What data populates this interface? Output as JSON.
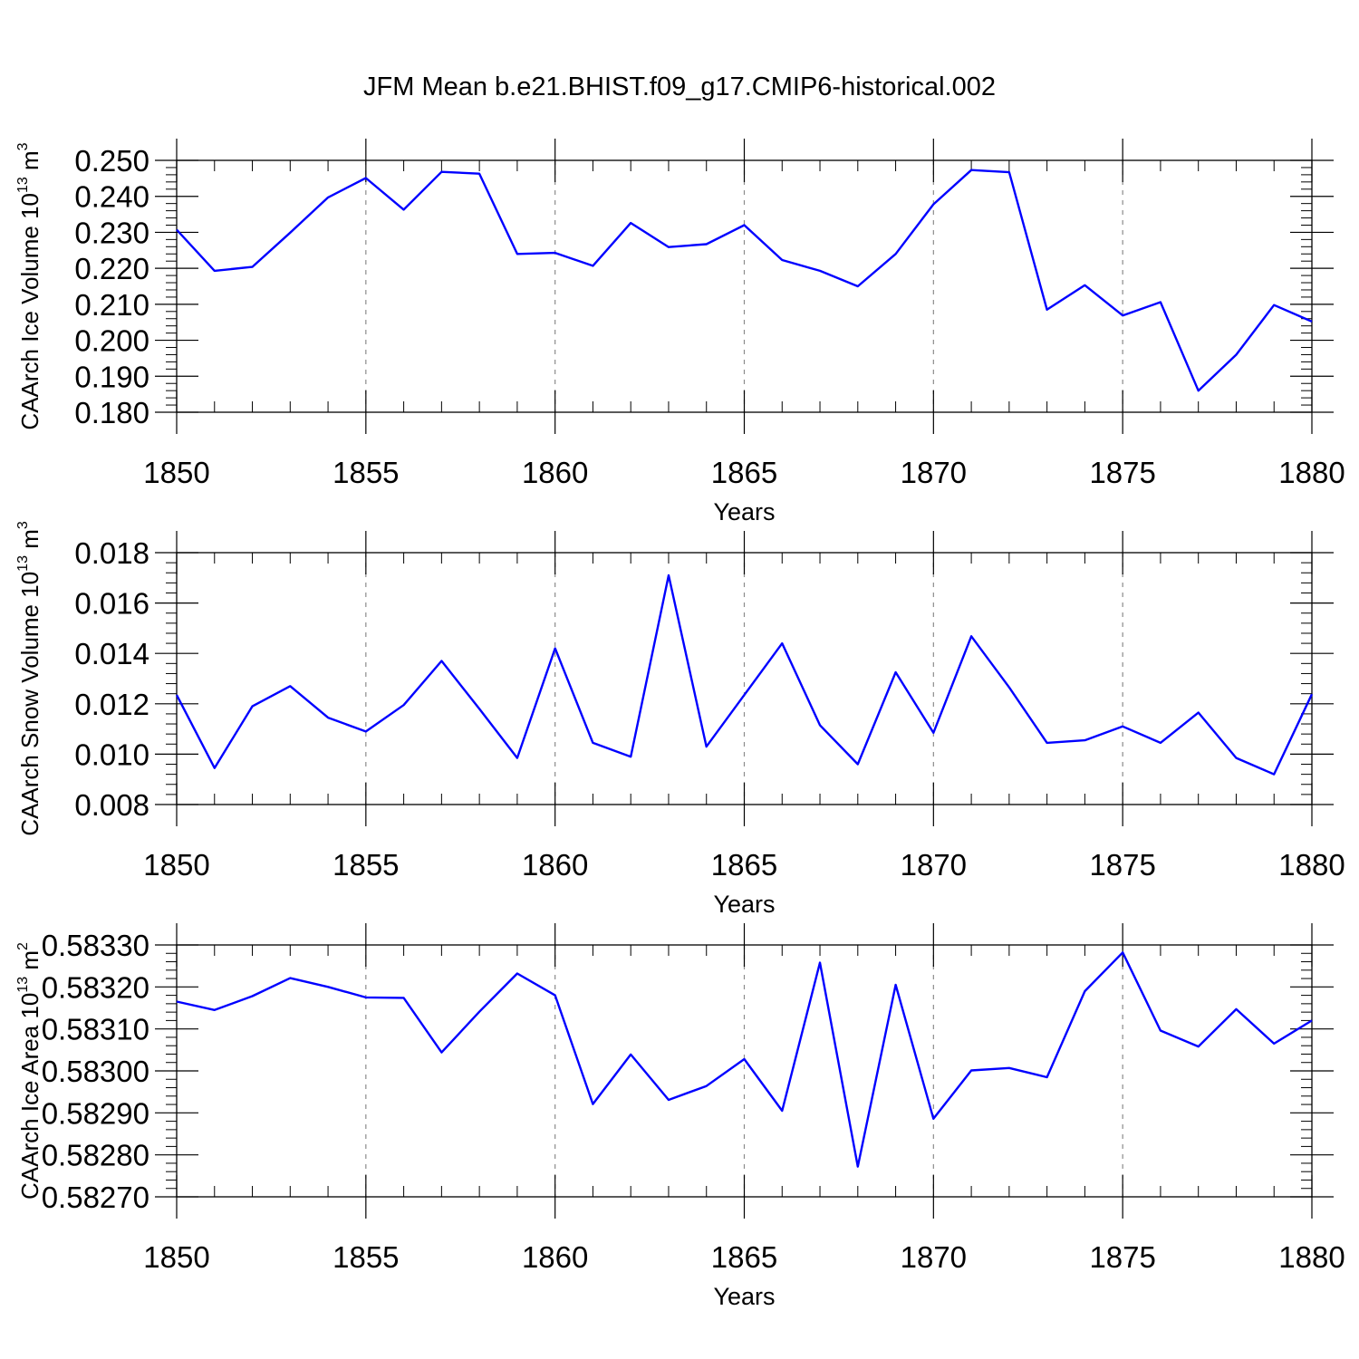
{
  "title": "JFM Mean b.e21.BHIST.f09_g17.CMIP6-historical.002",
  "colors": {
    "series_line": "#0000ff",
    "axes": "#000000",
    "grid": "#8c8c8c"
  },
  "chart_data": [
    {
      "type": "line",
      "ylabel": {
        "text": "CAArch Ice Volume 10",
        "exponent": "13",
        "unit": " m",
        "unit_exponent": "3"
      },
      "xlabel": "Years",
      "xlim": [
        1850,
        1880
      ],
      "ylim": [
        0.18,
        0.25
      ],
      "xticks": [
        "1850",
        "1855",
        "1860",
        "1865",
        "1870",
        "1875",
        "1880"
      ],
      "yticks": [
        "0.180",
        "0.190",
        "0.200",
        "0.210",
        "0.220",
        "0.230",
        "0.240",
        "0.250"
      ],
      "grid": "vertical dashed at major x ticks",
      "x": [
        1850,
        1851,
        1852,
        1853,
        1854,
        1855,
        1856,
        1857,
        1858,
        1859,
        1860,
        1861,
        1862,
        1863,
        1864,
        1865,
        1866,
        1867,
        1868,
        1869,
        1870,
        1871,
        1872,
        1873,
        1874,
        1875,
        1876,
        1877,
        1878,
        1879,
        1880
      ],
      "values": [
        0.2307,
        0.2193,
        0.2204,
        0.2299,
        0.2397,
        0.2451,
        0.2363,
        0.2468,
        0.2463,
        0.224,
        0.2243,
        0.2207,
        0.2326,
        0.2259,
        0.2267,
        0.232,
        0.2223,
        0.2193,
        0.215,
        0.224,
        0.2378,
        0.2473,
        0.2467,
        0.2085,
        0.2153,
        0.2069,
        0.2106,
        0.186,
        0.196,
        0.2098,
        0.2052
      ]
    },
    {
      "type": "line",
      "ylabel": {
        "text": "CAArch Snow Volume 10",
        "exponent": "13",
        "unit": " m",
        "unit_exponent": "3"
      },
      "xlabel": "Years",
      "xlim": [
        1850,
        1880
      ],
      "ylim": [
        0.008,
        0.018
      ],
      "xticks": [
        "1850",
        "1855",
        "1860",
        "1865",
        "1870",
        "1875",
        "1880"
      ],
      "yticks": [
        "0.008",
        "0.010",
        "0.012",
        "0.014",
        "0.016",
        "0.018"
      ],
      "grid": "vertical dashed at major x ticks",
      "x": [
        1850,
        1851,
        1852,
        1853,
        1854,
        1855,
        1856,
        1857,
        1858,
        1859,
        1860,
        1861,
        1862,
        1863,
        1864,
        1865,
        1866,
        1867,
        1868,
        1869,
        1870,
        1871,
        1872,
        1873,
        1874,
        1875,
        1876,
        1877,
        1878,
        1879,
        1880
      ],
      "values": [
        0.01235,
        0.00945,
        0.0119,
        0.0127,
        0.01145,
        0.0109,
        0.01195,
        0.0137,
        0.0118,
        0.00985,
        0.0142,
        0.01045,
        0.0099,
        0.0171,
        0.0103,
        0.01235,
        0.0144,
        0.01115,
        0.0096,
        0.01325,
        0.01085,
        0.01468,
        0.01265,
        0.01045,
        0.01055,
        0.0111,
        0.01045,
        0.01165,
        0.00985,
        0.0092,
        0.01238
      ]
    },
    {
      "type": "line",
      "ylabel": {
        "text": "CAArch Ice Area 10",
        "exponent": "13",
        "unit": " m",
        "unit_exponent": "2"
      },
      "xlabel": "Years",
      "xlim": [
        1850,
        1880
      ],
      "ylim": [
        0.5827,
        0.5833
      ],
      "xticks": [
        "1850",
        "1855",
        "1860",
        "1865",
        "1870",
        "1875",
        "1880"
      ],
      "yticks": [
        "0.58270",
        "0.58280",
        "0.58290",
        "0.58300",
        "0.58310",
        "0.58320",
        "0.58330"
      ],
      "grid": "vertical dashed at major x ticks",
      "x": [
        1850,
        1851,
        1852,
        1853,
        1854,
        1855,
        1856,
        1857,
        1858,
        1859,
        1860,
        1861,
        1862,
        1863,
        1864,
        1865,
        1866,
        1867,
        1868,
        1869,
        1870,
        1871,
        1872,
        1873,
        1874,
        1875,
        1876,
        1877,
        1878,
        1879,
        1880
      ],
      "values": [
        0.583165,
        0.583145,
        0.583178,
        0.583221,
        0.5832,
        0.583175,
        0.583174,
        0.583044,
        0.583141,
        0.583232,
        0.58318,
        0.582921,
        0.583039,
        0.582931,
        0.582964,
        0.583028,
        0.582905,
        0.583258,
        0.582772,
        0.583205,
        0.582886,
        0.583001,
        0.583007,
        0.582985,
        0.58319,
        0.583282,
        0.583096,
        0.583058,
        0.583147,
        0.583065,
        0.58312
      ]
    }
  ]
}
